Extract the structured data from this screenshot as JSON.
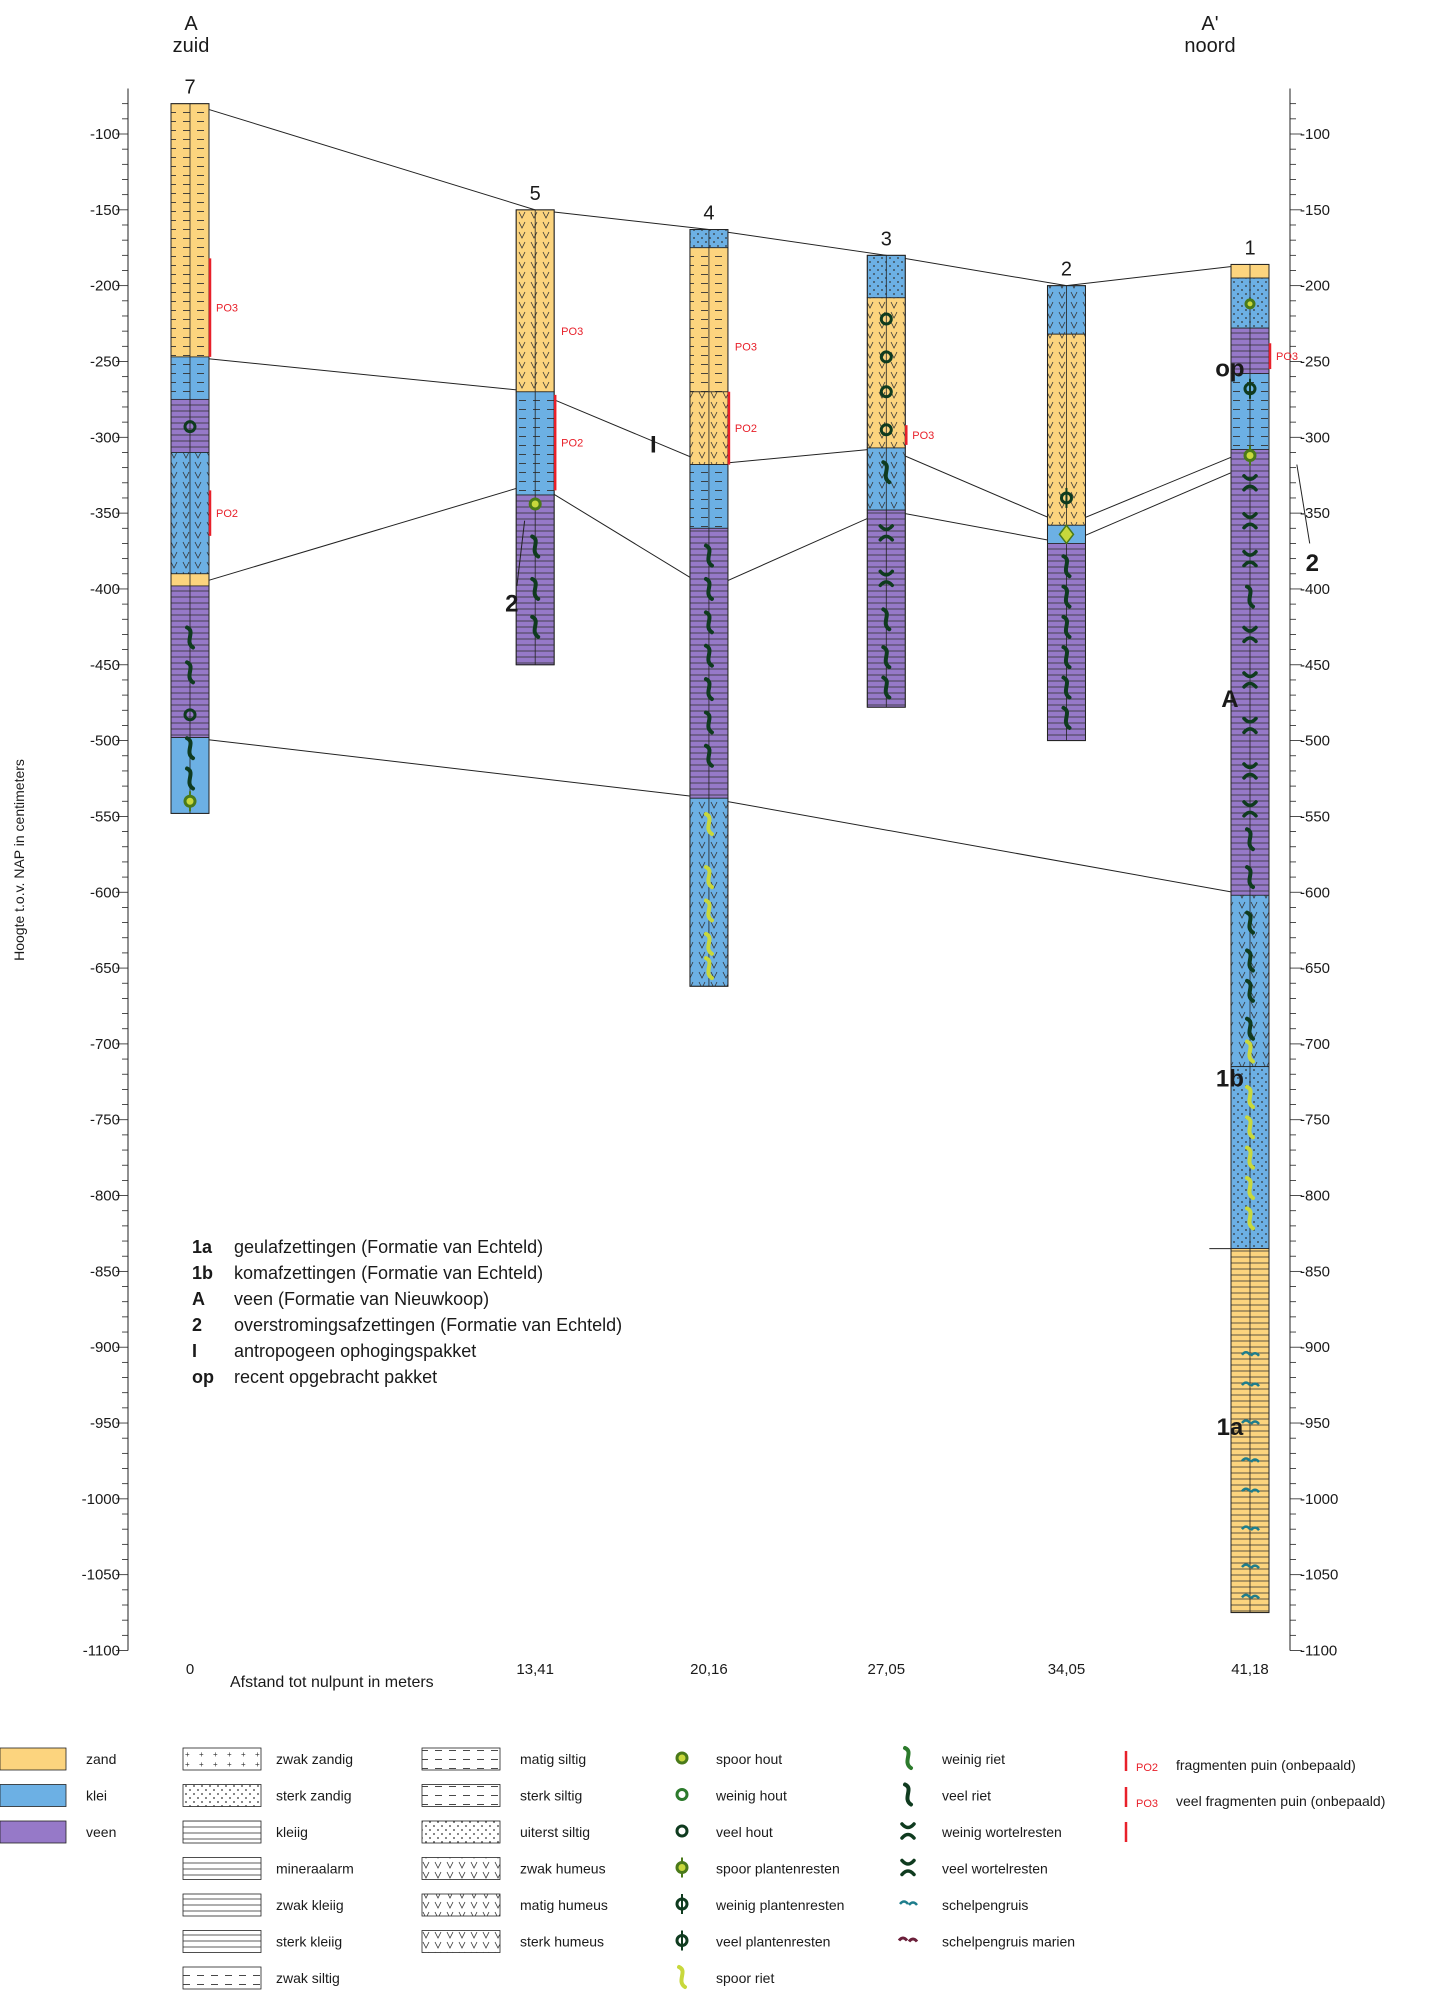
{
  "header": {
    "left_letter": "A",
    "left_dir": "zuid",
    "right_letter": "A'",
    "right_dir": "noord"
  },
  "axes": {
    "ylabel": "Hoogte t.o.v. NAP in centimeters",
    "xlabel": "Afstand tot nulpunt in meters",
    "yrange": [
      -1100,
      -70
    ],
    "ticks": [
      "-100",
      "-150",
      "-200",
      "-250",
      "-300",
      "-350",
      "-400",
      "-450",
      "-500",
      "-550",
      "-600",
      "-650",
      "-700",
      "-750",
      "-800",
      "-850",
      "-900",
      "-950",
      "-1000",
      "-1050",
      "-1100"
    ],
    "distances": [
      "0",
      "13,41",
      "20,16",
      "27,05",
      "34,05",
      "41,18"
    ]
  },
  "colors": {
    "zand": "#fcd47e",
    "klei": "#6cb0e4",
    "veen": "#9679c8",
    "red": "#e8202a",
    "dark_green": "#0f3b1f",
    "light_green": "#c8d83c"
  },
  "boreholes": [
    {
      "id": "7",
      "dist": 0,
      "top": -80,
      "bottom": -548,
      "layers": [
        {
          "t": -80,
          "b": -247,
          "m": "zand",
          "sym": "siltig"
        },
        {
          "t": -247,
          "b": -275,
          "m": "klei",
          "sym": "siltig"
        },
        {
          "t": -275,
          "b": -310,
          "m": "veen",
          "sym": "kleiig"
        },
        {
          "t": -310,
          "b": -390,
          "m": "klei",
          "sym": "humeus"
        },
        {
          "t": -390,
          "b": -398,
          "m": "zand",
          "sym": "none"
        },
        {
          "t": -398,
          "b": -498,
          "m": "veen",
          "sym": "kleiig"
        },
        {
          "t": -498,
          "b": -548,
          "m": "klei",
          "sym": "none"
        }
      ],
      "po": [
        {
          "t": -182,
          "b": -247,
          "label": "PO3"
        },
        {
          "t": -335,
          "b": -365,
          "label": "PO2"
        }
      ]
    },
    {
      "id": "5",
      "dist": 13.41,
      "top": -150,
      "bottom": -450,
      "layers": [
        {
          "t": -150,
          "b": -270,
          "m": "zand",
          "sym": "humeus"
        },
        {
          "t": -270,
          "b": -338,
          "m": "klei",
          "sym": "siltig"
        },
        {
          "t": -338,
          "b": -450,
          "m": "veen",
          "sym": "kleiig"
        }
      ],
      "po": [
        {
          "t": -230,
          "b": -230,
          "label": "PO3"
        },
        {
          "t": -272,
          "b": -335,
          "label": "PO2"
        }
      ]
    },
    {
      "id": "4",
      "dist": 20.16,
      "top": -163,
      "bottom": -662,
      "layers": [
        {
          "t": -163,
          "b": -175,
          "m": "klei",
          "sym": "zandig"
        },
        {
          "t": -175,
          "b": -270,
          "m": "zand",
          "sym": "siltig"
        },
        {
          "t": -270,
          "b": -318,
          "m": "zand",
          "sym": "humeus"
        },
        {
          "t": -318,
          "b": -360,
          "m": "klei",
          "sym": "siltig"
        },
        {
          "t": -360,
          "b": -538,
          "m": "veen",
          "sym": "kleiig"
        },
        {
          "t": -538,
          "b": -662,
          "m": "klei",
          "sym": "humeus"
        }
      ],
      "po": [
        {
          "t": -240,
          "b": -240,
          "label": "PO3"
        },
        {
          "t": -270,
          "b": -318,
          "label": "PO2"
        }
      ]
    },
    {
      "id": "3",
      "dist": 27.05,
      "top": -180,
      "bottom": -478,
      "layers": [
        {
          "t": -180,
          "b": -208,
          "m": "klei",
          "sym": "zandig"
        },
        {
          "t": -208,
          "b": -307,
          "m": "zand",
          "sym": "humeus"
        },
        {
          "t": -307,
          "b": -348,
          "m": "klei",
          "sym": "humeus"
        },
        {
          "t": -348,
          "b": -478,
          "m": "veen",
          "sym": "kleiig"
        }
      ],
      "po": [
        {
          "t": -292,
          "b": -305,
          "label": "PO3"
        }
      ]
    },
    {
      "id": "2",
      "dist": 34.05,
      "top": -200,
      "bottom": -500,
      "layers": [
        {
          "t": -200,
          "b": -232,
          "m": "klei",
          "sym": "humeus"
        },
        {
          "t": -232,
          "b": -358,
          "m": "zand",
          "sym": "humeus"
        },
        {
          "t": -358,
          "b": -370,
          "m": "klei",
          "sym": "none"
        },
        {
          "t": -370,
          "b": -500,
          "m": "veen",
          "sym": "kleiig"
        }
      ],
      "po": []
    },
    {
      "id": "1",
      "dist": 41.18,
      "top": -186,
      "bottom": -1075,
      "layers": [
        {
          "t": -186,
          "b": -195,
          "m": "zand",
          "sym": "none"
        },
        {
          "t": -195,
          "b": -228,
          "m": "klei",
          "sym": "zandig"
        },
        {
          "t": -228,
          "b": -258,
          "m": "veen",
          "sym": "kleiig"
        },
        {
          "t": -258,
          "b": -308,
          "m": "klei",
          "sym": "siltig"
        },
        {
          "t": -308,
          "b": -602,
          "m": "veen",
          "sym": "kleiig"
        },
        {
          "t": -602,
          "b": -715,
          "m": "klei",
          "sym": "humeus"
        },
        {
          "t": -715,
          "b": -835,
          "m": "klei",
          "sym": "zandig"
        },
        {
          "t": -835,
          "b": -1075,
          "m": "zand",
          "sym": "kleiig"
        }
      ],
      "po": [
        {
          "t": -238,
          "b": -255,
          "label": "PO3"
        }
      ]
    }
  ],
  "unit_labels": [
    {
      "text": "I",
      "x": 18,
      "y": -310
    },
    {
      "text": "2",
      "x": 12.5,
      "y": -415
    },
    {
      "text": "op",
      "x": 40.4,
      "y": -260
    },
    {
      "text": "2",
      "x": 43.6,
      "y": -388
    },
    {
      "text": "A",
      "x": 40.4,
      "y": -478
    },
    {
      "text": "1b",
      "x": 40.4,
      "y": -728
    },
    {
      "text": "1a",
      "x": 40.4,
      "y": -958
    }
  ],
  "boundaries": [
    [
      [
        0,
        -80
      ],
      [
        13.41,
        -150
      ],
      [
        20.16,
        -163
      ],
      [
        27.05,
        -180
      ],
      [
        34.05,
        -200
      ],
      [
        41.18,
        -186
      ]
    ],
    [
      [
        0,
        -247
      ],
      [
        13.41,
        -270
      ],
      [
        20.16,
        -318
      ],
      [
        27.05,
        -307
      ],
      [
        34.05,
        -358
      ],
      [
        41.18,
        -308
      ]
    ],
    [
      [
        0,
        -398
      ],
      [
        13.41,
        -330
      ],
      [
        20.16,
        -400
      ],
      [
        27.05,
        -348
      ],
      [
        34.05,
        -370
      ],
      [
        41.18,
        -318
      ]
    ],
    [
      [
        0,
        -498
      ],
      [
        20.16,
        -538
      ],
      [
        41.18,
        -602
      ]
    ],
    [
      [
        39.6,
        -835
      ],
      [
        41.18,
        -835
      ]
    ]
  ],
  "unit_legend": [
    {
      "code": "1a",
      "text": "geulafzettingen (Formatie van Echteld)"
    },
    {
      "code": "1b",
      "text": "komafzettingen (Formatie van Echteld)"
    },
    {
      "code": "A",
      "text": "veen (Formatie van Nieuwkoop)"
    },
    {
      "code": "2",
      "text": "overstromingsafzettingen (Formatie van Echteld)"
    },
    {
      "code": "I",
      "text": "antropogeen ophogingspakket"
    },
    {
      "code": "op",
      "text": "recent opgebracht pakket"
    }
  ],
  "legend": {
    "materials": [
      {
        "key": "zand",
        "label": "zand"
      },
      {
        "key": "klei",
        "label": "klei"
      },
      {
        "key": "veen",
        "label": "veen"
      }
    ],
    "patterns": [
      {
        "key": "zwak_zandig",
        "label": "zwak zandig"
      },
      {
        "key": "sterk_zandig",
        "label": "sterk zandig"
      },
      {
        "key": "kleiig",
        "label": "kleiig"
      },
      {
        "key": "mineraalarm",
        "label": "mineraalarm"
      },
      {
        "key": "zwak_kleiig",
        "label": "zwak kleiig"
      },
      {
        "key": "sterk_kleiig",
        "label": "sterk kleiig"
      },
      {
        "key": "zwak_siltig",
        "label": "zwak siltig"
      }
    ],
    "patterns2": [
      {
        "key": "matig_siltig",
        "label": "matig siltig"
      },
      {
        "key": "sterk_siltig",
        "label": "sterk siltig"
      },
      {
        "key": "uiterst_siltig",
        "label": "uiterst siltig"
      },
      {
        "key": "zwak_humeus",
        "label": "zwak humeus"
      },
      {
        "key": "matig_humeus",
        "label": "matig humeus"
      },
      {
        "key": "sterk_humeus",
        "label": "sterk humeus"
      }
    ],
    "symbols": [
      {
        "key": "spoor_hout",
        "label": "spoor hout"
      },
      {
        "key": "weinig_hout",
        "label": "weinig hout"
      },
      {
        "key": "veel_hout",
        "label": "veel hout"
      },
      {
        "key": "spoor_planten",
        "label": "spoor plantenresten"
      },
      {
        "key": "weinig_planten",
        "label": "weinig plantenresten"
      },
      {
        "key": "veel_planten",
        "label": "veel plantenresten"
      },
      {
        "key": "spoor_riet",
        "label": "spoor riet"
      }
    ],
    "symbols2": [
      {
        "key": "weinig_riet",
        "label": "weinig riet"
      },
      {
        "key": "veel_riet",
        "label": "veel riet"
      },
      {
        "key": "weinig_wortel",
        "label": "weinig wortelresten"
      },
      {
        "key": "veel_wortel",
        "label": "veel wortelresten"
      },
      {
        "key": "schelpengruis",
        "label": "schelpengruis"
      },
      {
        "key": "schelpengruis_marien",
        "label": "schelpengruis marien"
      }
    ],
    "po": [
      {
        "code": "PO2",
        "label": "fragmenten puin (onbepaald)"
      },
      {
        "code": "PO3",
        "label": "veel fragmenten puin (onbepaald)"
      }
    ]
  }
}
